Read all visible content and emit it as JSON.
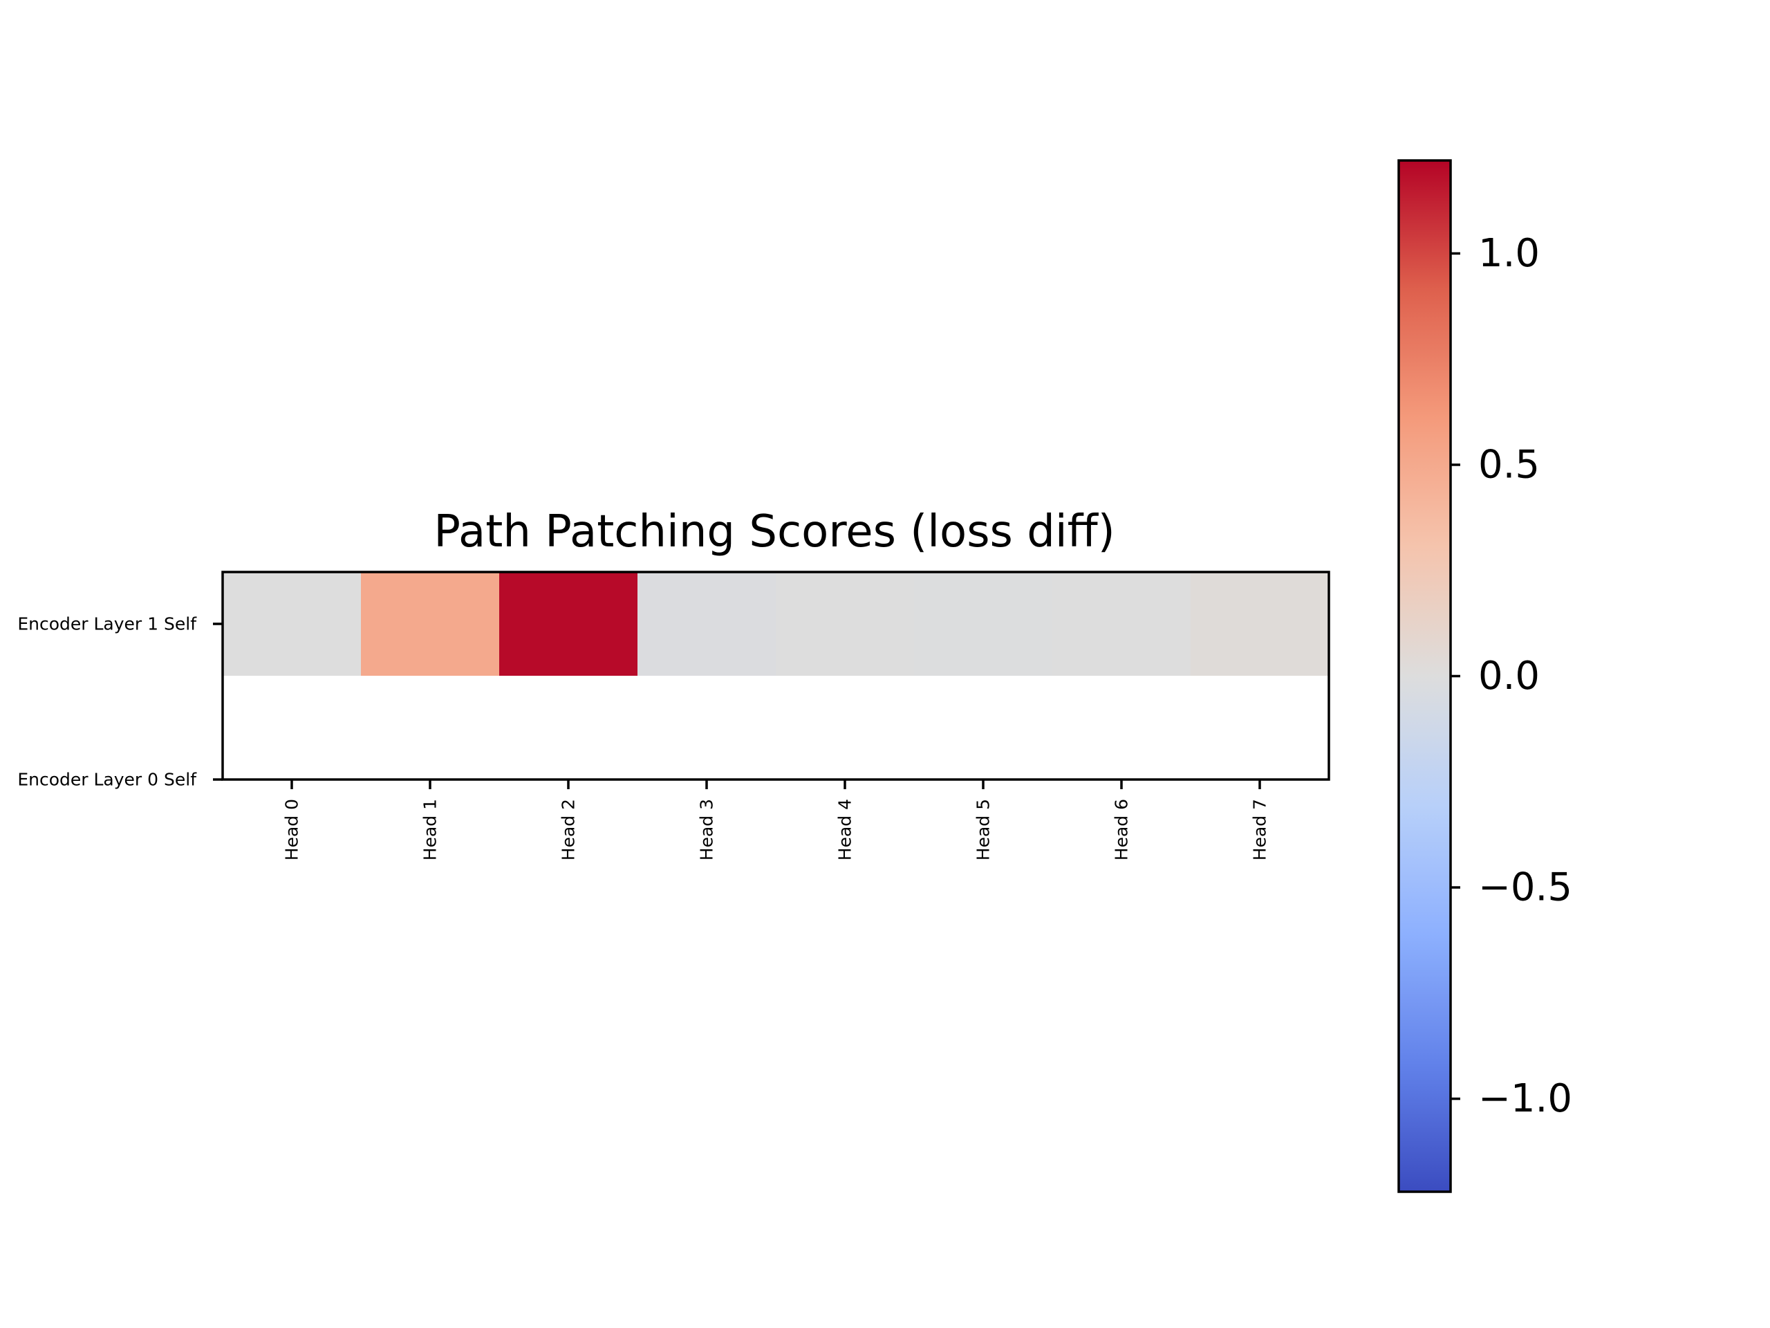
{
  "chart_data": {
    "type": "heatmap",
    "title": "Path Patching Scores (loss diff)",
    "xlabel": "",
    "ylabel": "",
    "x_categories": [
      "Head 0",
      "Head 1",
      "Head 2",
      "Head 3",
      "Head 4",
      "Head 5",
      "Head 6",
      "Head 7"
    ],
    "y_categories": [
      "Encoder Layer 1 Self",
      "Encoder Layer 0 Self"
    ],
    "values": [
      [
        0.0,
        0.5,
        1.2,
        -0.02,
        0.0,
        -0.01,
        0.0,
        0.03
      ],
      [
        null,
        null,
        null,
        null,
        null,
        null,
        null,
        null
      ]
    ],
    "colormap": "coolwarm",
    "colorbar": {
      "vmin": -1.22,
      "vmax": 1.22,
      "ticks": [
        1.0,
        0.5,
        0.0,
        -0.5,
        -1.0
      ],
      "tick_labels": [
        "1.0",
        "0.5",
        "0.0",
        "−0.5",
        "−1.0"
      ]
    },
    "grid": false,
    "legend": "none"
  }
}
